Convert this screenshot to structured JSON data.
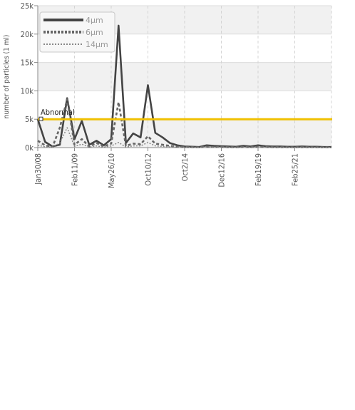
{
  "chart_data": {
    "type": "line",
    "ylabel": "number of particles (1 ml)",
    "xlabel": "",
    "ylim": [
      0,
      25000
    ],
    "y_ticks": [
      0,
      5000,
      10000,
      15000,
      20000,
      25000
    ],
    "y_tick_labels": [
      "0k",
      "5k",
      "10k",
      "15k",
      "20k",
      "25k"
    ],
    "x_tick_labels": [
      "Jan30/08",
      "Feb11/09",
      "May26/10",
      "Oct10/12",
      "Oct2/14",
      "Dec12/16",
      "Feb19/19",
      "Feb25/21"
    ],
    "grid": true,
    "legend_position": "top-left",
    "x_count": 41,
    "series": [
      {
        "name": "4µm",
        "values": [
          5000,
          1000,
          200,
          500,
          8700,
          1500,
          4700,
          500,
          1200,
          400,
          1500,
          21500,
          800,
          2500,
          1800,
          11000,
          2600,
          1800,
          800,
          400,
          200,
          150,
          100,
          400,
          300,
          250,
          200,
          150,
          300,
          200,
          400,
          250,
          200,
          200,
          150,
          150,
          200,
          150,
          150,
          100,
          100
        ],
        "color": "#444444"
      },
      {
        "name": "6µm",
        "values": [
          1200,
          400,
          100,
          3500,
          8500,
          500,
          1500,
          200,
          800,
          200,
          700,
          8000,
          300,
          700,
          600,
          2000,
          700,
          500,
          300,
          150,
          100,
          80,
          60,
          150,
          100,
          100,
          80,
          60,
          100,
          80,
          150,
          100,
          80,
          80,
          60,
          60,
          80,
          60,
          60,
          50,
          50
        ],
        "color": "#666666"
      },
      {
        "name": "14µm",
        "values": [
          400,
          150,
          50,
          800,
          3500,
          200,
          600,
          80,
          300,
          80,
          300,
          900,
          100,
          300,
          300,
          900,
          300,
          200,
          120,
          80,
          60,
          50,
          40,
          80,
          60,
          60,
          50,
          40,
          60,
          50,
          80,
          60,
          50,
          50,
          40,
          40,
          50,
          40,
          40,
          30,
          30
        ],
        "color": "#888888"
      }
    ],
    "threshold": {
      "label": "Abnormal",
      "value": 5000,
      "color": "#f0c000"
    }
  }
}
